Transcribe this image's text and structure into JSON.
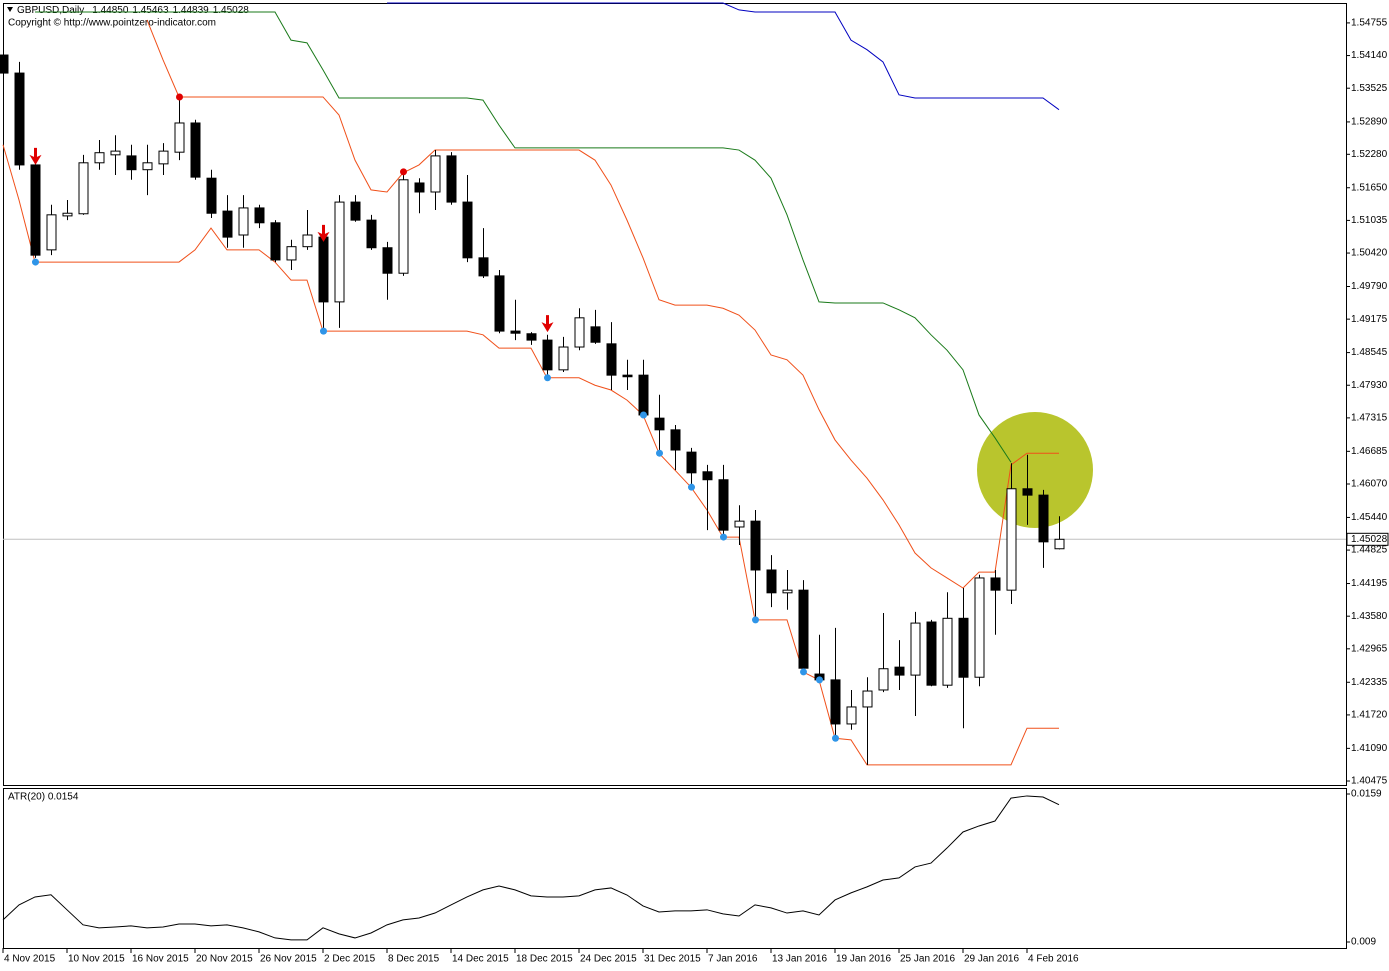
{
  "chart_data": [
    {
      "type": "candlestick",
      "title": "GBPUSD,Daily",
      "header_values": [
        "1.44850",
        "1.45463",
        "1.44839",
        "1.45028"
      ],
      "copyright": "Copyright © http://www.pointzero-indicator.com",
      "categories": [
        "4 Nov 2015",
        null,
        null,
        null,
        "10 Nov 2015",
        null,
        null,
        null,
        "16 Nov 2015",
        null,
        null,
        null,
        "20 Nov 2015",
        null,
        null,
        null,
        "26 Nov 2015",
        null,
        null,
        null,
        "2 Dec 2015",
        null,
        null,
        null,
        "8 Dec 2015",
        null,
        null,
        null,
        "14 Dec 2015",
        null,
        null,
        null,
        "18 Dec 2015",
        null,
        null,
        null,
        "24 Dec 2015",
        null,
        null,
        null,
        "31 Dec 2015",
        null,
        null,
        null,
        "7 Jan 2016",
        null,
        null,
        null,
        "13 Jan 2016",
        null,
        null,
        null,
        "19 Jan 2016",
        null,
        null,
        null,
        "25 Jan 2016",
        null,
        null,
        null,
        "29 Jan 2016",
        null,
        null,
        null,
        "4 Feb 2016",
        null,
        null
      ],
      "open": [
        1.5415,
        1.5381,
        1.5208,
        1.5048,
        1.5112,
        1.5116,
        1.5212,
        1.5227,
        1.5225,
        1.5199,
        1.521,
        1.5232,
        1.5287,
        1.5183,
        1.5121,
        1.5076,
        1.5127,
        1.5099,
        1.5029,
        1.5054,
        1.5072,
        1.495,
        1.5138,
        1.5104,
        1.5052,
        1.5004,
        1.5174,
        1.5157,
        1.5225,
        1.5138,
        1.5033,
        1.4999,
        1.4895,
        1.489,
        1.4878,
        1.4822,
        1.4865,
        1.4903,
        1.4871,
        1.4812,
        1.4812,
        1.4731,
        1.4709,
        1.4667,
        1.463,
        1.4615,
        1.4526,
        1.4537,
        1.4445,
        1.4402,
        1.4407,
        1.4249,
        1.4238,
        1.4155,
        1.4187,
        1.4219,
        1.4262,
        1.4247,
        1.4347,
        1.4228,
        1.4354,
        1.4243,
        1.443,
        1.4407,
        1.4598,
        1.4586,
        1.4485
      ],
      "high": [
        1.5443,
        1.5402,
        1.5217,
        1.5133,
        1.5142,
        1.5227,
        1.5255,
        1.5264,
        1.5246,
        1.5246,
        1.5249,
        1.5336,
        1.5293,
        1.5199,
        1.5151,
        1.5151,
        1.5133,
        1.5104,
        1.5067,
        1.5123,
        1.5086,
        1.5151,
        1.5151,
        1.5114,
        1.5063,
        1.5195,
        1.5183,
        1.5236,
        1.5232,
        1.5189,
        1.5089,
        1.501,
        1.4954,
        1.4893,
        1.4888,
        1.4884,
        1.4938,
        1.4935,
        1.4912,
        1.4841,
        1.4841,
        1.4775,
        1.4718,
        1.4675,
        1.4643,
        1.4643,
        1.4567,
        1.4558,
        1.4473,
        1.4445,
        1.4426,
        1.4323,
        1.4336,
        1.4219,
        1.4243,
        1.4364,
        1.4313,
        1.4366,
        1.4351,
        1.4403,
        1.4411,
        1.4436,
        1.4445,
        1.4646,
        1.4662,
        1.4596,
        1.45463
      ],
      "low": [
        1.5359,
        1.5199,
        1.5033,
        1.5038,
        1.5104,
        1.5114,
        1.5199,
        1.5189,
        1.518,
        1.5151,
        1.5189,
        1.5217,
        1.518,
        1.5108,
        1.5052,
        1.5052,
        1.5089,
        1.5025,
        1.501,
        1.5048,
        1.4897,
        1.4901,
        1.5101,
        1.5048,
        1.4954,
        1.4999,
        1.5117,
        1.5123,
        1.5133,
        1.5025,
        1.4995,
        1.4891,
        1.4878,
        1.4869,
        1.4803,
        1.4818,
        1.4859,
        1.4871,
        1.4784,
        1.4784,
        1.4731,
        1.4662,
        1.4633,
        1.4596,
        1.452,
        1.4501,
        1.4492,
        1.4351,
        1.4375,
        1.437,
        1.4253,
        1.4232,
        1.4128,
        1.4144,
        1.4078,
        1.4215,
        1.4219,
        1.417,
        1.4226,
        1.4223,
        1.4147,
        1.4226,
        1.4323,
        1.4381,
        1.453,
        1.4449,
        1.44839
      ],
      "close": [
        1.5381,
        1.5208,
        1.5038,
        1.5114,
        1.5117,
        1.5212,
        1.5231,
        1.5234,
        1.5199,
        1.5212,
        1.5234,
        1.5287,
        1.5185,
        1.5117,
        1.5072,
        1.5127,
        1.5099,
        1.5029,
        1.5054,
        1.5076,
        1.495,
        1.5138,
        1.5104,
        1.5052,
        1.5004,
        1.518,
        1.5157,
        1.5225,
        1.5138,
        1.5033,
        1.4999,
        1.4895,
        1.4891,
        1.4878,
        1.4822,
        1.4865,
        1.492,
        1.4874,
        1.4812,
        1.4809,
        1.4737,
        1.4709,
        1.4671,
        1.4628,
        1.4615,
        1.452,
        1.4537,
        1.4445,
        1.4402,
        1.4407,
        1.426,
        1.4238,
        1.4155,
        1.4187,
        1.4217,
        1.4259,
        1.4247,
        1.4345,
        1.4228,
        1.4354,
        1.4243,
        1.443,
        1.4407,
        1.4598,
        1.4586,
        1.4498,
        1.45028
      ],
      "series": [
        {
          "color": "#f0501a",
          "values": [
            null,
            null,
            null,
            null,
            null,
            null,
            null,
            null,
            null,
            1.5481,
            1.5406,
            1.5336,
            1.5336,
            1.5336,
            1.5336,
            1.5336,
            1.5336,
            1.5336,
            1.5336,
            1.5336,
            1.5336,
            1.5302,
            1.5217,
            1.5161,
            1.5157,
            1.5193,
            1.5208,
            1.5236,
            1.5236,
            1.5236,
            1.5236,
            1.5236,
            1.5236,
            1.5236,
            1.5236,
            1.5236,
            1.5236,
            1.5217,
            1.517,
            1.5104,
            1.5033,
            1.4954,
            1.4944,
            1.4944,
            1.4944,
            1.4938,
            1.4925,
            1.4897,
            1.485,
            1.4841,
            1.4812,
            1.4747,
            1.469,
            1.4652,
            1.4618,
            1.4577,
            1.453,
            1.4477,
            1.4449,
            1.443,
            1.4411,
            1.4441,
            1.4441,
            1.4643,
            1.4665,
            1.4665,
            1.4665
          ]
        },
        {
          "color": "#f0501a",
          "values": [
            1.5246,
            1.5142,
            1.5025,
            1.5025,
            1.5025,
            1.5025,
            1.5025,
            1.5025,
            1.5025,
            1.5025,
            1.5025,
            1.5025,
            1.5048,
            1.5089,
            1.5048,
            1.5048,
            1.5048,
            1.5025,
            1.4991,
            1.4991,
            1.4895,
            1.4895,
            1.4895,
            1.4895,
            1.4895,
            1.4895,
            1.4895,
            1.4895,
            1.4895,
            1.4895,
            1.4888,
            1.4863,
            1.4863,
            1.4863,
            1.4807,
            1.4807,
            1.4807,
            1.4793,
            1.4784,
            1.4765,
            1.4737,
            1.4665,
            1.4633,
            1.4601,
            1.4558,
            1.4507,
            1.4507,
            1.4351,
            1.4351,
            1.4351,
            1.4253,
            1.4238,
            1.4128,
            1.4125,
            1.4078,
            1.4078,
            1.4078,
            1.4078,
            1.4078,
            1.4078,
            1.4078,
            1.4078,
            1.4078,
            1.4078,
            1.4147,
            1.4147,
            1.4147
          ]
        },
        {
          "color": "#1a7a1a",
          "values": [
            null,
            null,
            1.5496,
            1.5496,
            1.5496,
            1.5496,
            1.5496,
            1.5496,
            1.5496,
            1.5496,
            1.5496,
            1.5496,
            1.5496,
            1.5496,
            1.5496,
            1.5496,
            1.5496,
            1.5496,
            1.5443,
            1.5438,
            1.5387,
            1.5334,
            1.5334,
            1.5334,
            1.5334,
            1.5334,
            1.5334,
            1.5334,
            1.5334,
            1.5334,
            1.533,
            1.5283,
            1.524,
            1.524,
            1.524,
            1.524,
            1.524,
            1.524,
            1.524,
            1.524,
            1.524,
            1.524,
            1.524,
            1.524,
            1.524,
            1.524,
            1.5236,
            1.5217,
            1.5183,
            1.5114,
            1.5029,
            1.495,
            1.4948,
            1.4948,
            1.4948,
            1.4948,
            1.4935,
            1.492,
            1.4888,
            1.4859,
            1.4822,
            1.4737,
            1.4694,
            1.4648,
            null,
            null,
            null
          ]
        },
        {
          "color": "#0000c0",
          "values": [
            null,
            null,
            null,
            null,
            null,
            null,
            null,
            null,
            null,
            null,
            null,
            null,
            null,
            null,
            null,
            null,
            null,
            null,
            null,
            null,
            null,
            null,
            null,
            null,
            1.5513,
            1.5513,
            1.5513,
            1.5513,
            1.5513,
            1.5513,
            1.5513,
            1.5513,
            1.5513,
            1.5513,
            1.5513,
            1.5513,
            1.5513,
            1.5513,
            1.5513,
            1.5513,
            1.5513,
            1.5513,
            1.5513,
            1.5513,
            1.5513,
            1.5513,
            1.55,
            1.5496,
            1.5496,
            1.5496,
            1.5496,
            1.5496,
            1.5496,
            1.5443,
            1.5425,
            1.5402,
            1.534,
            1.5334,
            1.5334,
            1.5334,
            1.5334,
            1.5334,
            1.5334,
            1.5334,
            1.5334,
            1.5334,
            1.5312
          ]
        }
      ],
      "markers": [
        {
          "color": "#e00000",
          "values": [
            null,
            null,
            null,
            null,
            null,
            null,
            null,
            null,
            null,
            null,
            null,
            1.5336,
            null,
            null,
            null,
            null,
            null,
            null,
            null,
            null,
            null,
            null,
            null,
            null,
            null,
            1.5195,
            null,
            null,
            null,
            null,
            null,
            null,
            null,
            null,
            null,
            null,
            null,
            null,
            null,
            null,
            null,
            null,
            null,
            null,
            null,
            null,
            null,
            null,
            null,
            null,
            null,
            null,
            null,
            null,
            null,
            null,
            null,
            null,
            null,
            null,
            null,
            null,
            null,
            null,
            null,
            null,
            null
          ]
        },
        {
          "color": "#2f95e8",
          "values": [
            null,
            null,
            1.5025,
            null,
            null,
            null,
            null,
            null,
            null,
            null,
            null,
            null,
            null,
            null,
            null,
            null,
            null,
            null,
            null,
            null,
            1.4895,
            null,
            null,
            null,
            null,
            null,
            null,
            null,
            null,
            null,
            null,
            null,
            null,
            null,
            1.4807,
            null,
            null,
            null,
            null,
            null,
            1.4737,
            1.4665,
            null,
            1.4601,
            null,
            1.4507,
            null,
            1.4351,
            null,
            null,
            1.4253,
            1.4238,
            1.4128,
            null,
            null,
            null,
            null,
            null,
            null,
            null,
            null,
            null,
            null,
            null,
            null,
            null,
            null
          ]
        }
      ],
      "arrows": {
        "color": "#e00000",
        "values": [
          null,
          null,
          1.5208,
          null,
          null,
          null,
          null,
          null,
          null,
          null,
          null,
          null,
          null,
          null,
          null,
          null,
          null,
          null,
          null,
          null,
          1.5063,
          null,
          null,
          null,
          null,
          null,
          null,
          null,
          null,
          null,
          null,
          null,
          null,
          null,
          1.4893,
          null,
          null,
          null,
          null,
          null,
          null,
          null,
          null,
          null,
          null,
          null,
          null,
          null,
          null,
          null,
          null,
          null,
          null,
          null,
          null,
          null,
          null,
          null,
          null,
          null,
          null,
          null,
          null,
          null,
          null,
          null,
          null
        ]
      },
      "current_price": 1.45028,
      "ylim": [
        1.404,
        1.5513
      ],
      "yticks": [
        1.54755,
        {
          "value": 1.5414,
          "label": "1.54140"
        },
        1.53525,
        {
          "value": 1.5289,
          "label": "1.52890"
        },
        {
          "value": 1.5228,
          "label": "1.52280"
        },
        {
          "value": 1.5165,
          "label": "1.51650"
        },
        1.51035,
        {
          "value": 1.5042,
          "label": "1.50420"
        },
        {
          "value": 1.4979,
          "label": "1.49790"
        },
        1.49175,
        1.48545,
        {
          "value": 1.4793,
          "label": "1.47930"
        },
        1.47315,
        1.46685,
        {
          "value": 1.4607,
          "label": "1.46070"
        },
        {
          "value": 1.4544,
          "label": "1.45440"
        },
        1.44825,
        1.44195,
        {
          "value": 1.4358,
          "label": "1.43580"
        },
        1.42965,
        1.42335,
        {
          "value": 1.4172,
          "label": "1.41720"
        },
        {
          "value": 1.4109,
          "label": "1.41090"
        },
        1.40475
      ]
    },
    {
      "type": "line",
      "title": "ATR(20) 0.0154",
      "color": "#000000",
      "values": [
        0.01003,
        0.01073,
        0.0111,
        0.0112,
        0.0105,
        0.0098,
        0.00966,
        0.0097,
        0.00975,
        0.00966,
        0.0097,
        0.00984,
        0.00984,
        0.00975,
        0.0098,
        0.00966,
        0.00947,
        0.00919,
        0.0091,
        0.0091,
        0.00966,
        0.00938,
        0.00919,
        0.00942,
        0.0098,
        0.01003,
        0.01012,
        0.01035,
        0.01073,
        0.0111,
        0.01143,
        0.01161,
        0.01143,
        0.01115,
        0.0111,
        0.0111,
        0.01115,
        0.01143,
        0.01152,
        0.01119,
        0.01068,
        0.0104,
        0.01045,
        0.01045,
        0.0105,
        0.01031,
        0.01021,
        0.01073,
        0.01059,
        0.01035,
        0.01045,
        0.01026,
        0.01096,
        0.01129,
        0.01157,
        0.01189,
        0.01199,
        0.0125,
        0.01268,
        0.01338,
        0.01413,
        0.01441,
        0.01464,
        0.01571,
        0.01581,
        0.01576,
        0.0154
      ],
      "ylim": [
        0.00872,
        0.01618
      ],
      "yticks": [
        0.0159,
        0.009
      ]
    }
  ]
}
